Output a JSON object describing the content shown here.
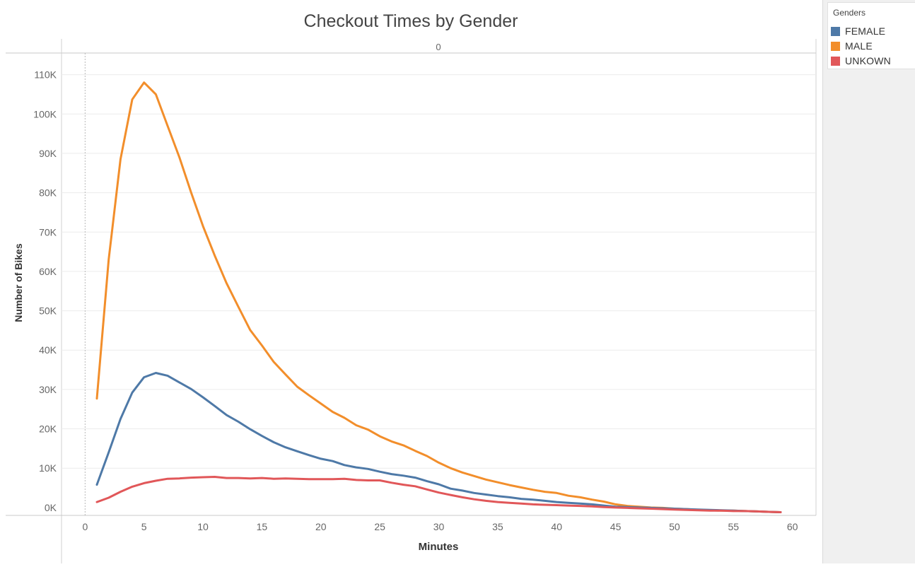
{
  "chart_data": {
    "type": "line",
    "title": "Checkout Times by Gender",
    "pane_header": "0",
    "xlabel": "Minutes",
    "ylabel": "Number of Bikes",
    "xlim": [
      -2,
      62
    ],
    "ylim": [
      -2000,
      115500
    ],
    "x_ticks": [
      0,
      5,
      10,
      15,
      20,
      25,
      30,
      35,
      40,
      45,
      50,
      55,
      60
    ],
    "y_ticks": [
      0,
      10000,
      20000,
      30000,
      40000,
      50000,
      60000,
      70000,
      80000,
      90000,
      100000,
      110000
    ],
    "y_tick_labels": [
      "0K",
      "10K",
      "20K",
      "30K",
      "40K",
      "50K",
      "60K",
      "70K",
      "80K",
      "90K",
      "100K",
      "110K"
    ],
    "grid": "horizontal",
    "legend": {
      "title": "Genders",
      "placement": "right",
      "items": [
        {
          "label": "FEMALE",
          "color": "#4e79a7"
        },
        {
          "label": "MALE",
          "color": "#f28e2b"
        },
        {
          "label": "UNKOWN",
          "color": "#e15759"
        }
      ]
    },
    "x": [
      1,
      2,
      3,
      4,
      5,
      6,
      7,
      8,
      9,
      10,
      11,
      12,
      13,
      14,
      15,
      16,
      17,
      18,
      19,
      20,
      21,
      22,
      23,
      24,
      25,
      26,
      27,
      28,
      29,
      30,
      31,
      32,
      33,
      34,
      35,
      36,
      37,
      38,
      39,
      40,
      41,
      42,
      43,
      44,
      45,
      46,
      47,
      48,
      49,
      50,
      51,
      52,
      53,
      54,
      55,
      56,
      57,
      58,
      59
    ],
    "series": [
      {
        "name": "MALE",
        "color": "#f28e2b",
        "values": [
          27700,
          63000,
          88500,
          103700,
          108000,
          105000,
          97000,
          89000,
          80000,
          71500,
          64000,
          57000,
          51000,
          45100,
          41200,
          37000,
          33800,
          30700,
          28500,
          26400,
          24300,
          22800,
          20900,
          19800,
          18100,
          16800,
          15800,
          14400,
          13100,
          11400,
          10000,
          8900,
          8000,
          7100,
          6400,
          5700,
          5100,
          4500,
          4000,
          3700,
          3000,
          2600,
          2000,
          1500,
          800,
          400,
          200,
          0,
          -100,
          -300,
          -400,
          -600,
          -700,
          -800,
          -800,
          -900,
          -1000,
          -1100,
          -1200
        ]
      },
      {
        "name": "FEMALE",
        "color": "#4e79a7",
        "values": [
          5800,
          14000,
          22500,
          29200,
          33100,
          34200,
          33500,
          31800,
          30100,
          28000,
          25800,
          23500,
          21800,
          19900,
          18200,
          16600,
          15300,
          14300,
          13300,
          12400,
          11800,
          10800,
          10200,
          9800,
          9100,
          8500,
          8100,
          7600,
          6700,
          5900,
          4800,
          4300,
          3700,
          3300,
          2900,
          2600,
          2200,
          2000,
          1700,
          1400,
          1200,
          1000,
          800,
          500,
          200,
          100,
          0,
          -100,
          -200,
          -300,
          -400,
          -500,
          -600,
          -700,
          -800,
          -900,
          -1000,
          -1100,
          -1200
        ]
      },
      {
        "name": "UNKOWN",
        "color": "#e15759",
        "values": [
          1400,
          2500,
          4000,
          5300,
          6200,
          6800,
          7300,
          7400,
          7600,
          7700,
          7800,
          7500,
          7500,
          7400,
          7500,
          7300,
          7400,
          7300,
          7200,
          7200,
          7200,
          7300,
          7000,
          6900,
          6900,
          6300,
          5800,
          5400,
          4600,
          3800,
          3200,
          2600,
          2100,
          1700,
          1400,
          1200,
          1000,
          800,
          700,
          600,
          500,
          400,
          300,
          100,
          0,
          -100,
          -200,
          -300,
          -400,
          -500,
          -600,
          -700,
          -800,
          -800,
          -900,
          -900,
          -1000,
          -1100,
          -1200
        ]
      }
    ]
  }
}
